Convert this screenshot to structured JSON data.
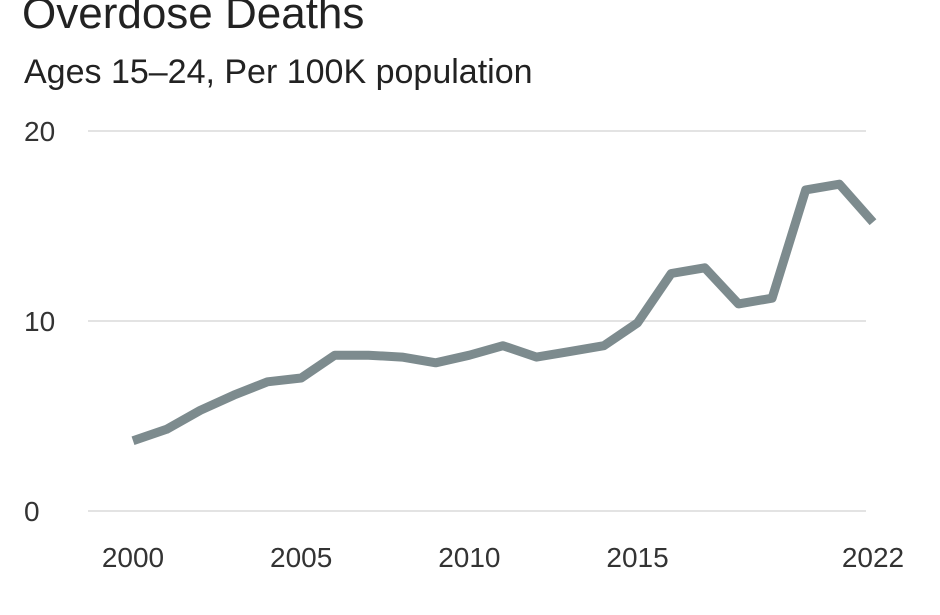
{
  "chart_data": {
    "type": "line",
    "title": "Overdose Deaths",
    "subtitle": "Ages 15–24, Per 100K population",
    "xlabel": "",
    "ylabel": "",
    "x": [
      2000,
      2001,
      2002,
      2003,
      2004,
      2005,
      2006,
      2007,
      2008,
      2009,
      2010,
      2011,
      2012,
      2013,
      2014,
      2015,
      2016,
      2017,
      2018,
      2019,
      2020,
      2021,
      2022
    ],
    "series": [
      {
        "values": [
          3.7,
          4.3,
          5.3,
          6.1,
          6.8,
          7.0,
          8.2,
          8.2,
          8.1,
          7.8,
          8.2,
          8.7,
          8.1,
          8.4,
          8.7,
          9.9,
          12.5,
          12.8,
          10.9,
          11.2,
          16.9,
          17.2,
          15.2
        ],
        "color": "#7d8b8e"
      }
    ],
    "xticks": [
      2000,
      2005,
      2010,
      2015,
      2022
    ],
    "xtick_labels": [
      "2000",
      "2005",
      "2010",
      "2015",
      "2022"
    ],
    "yticks": [
      0,
      10,
      20
    ],
    "ytick_labels": [
      "0",
      "10",
      "20"
    ],
    "xlim": [
      2000,
      2022
    ],
    "ylim": [
      0,
      20
    ],
    "grid": true,
    "grid_color": "#e3e3e3",
    "legend": "none"
  }
}
